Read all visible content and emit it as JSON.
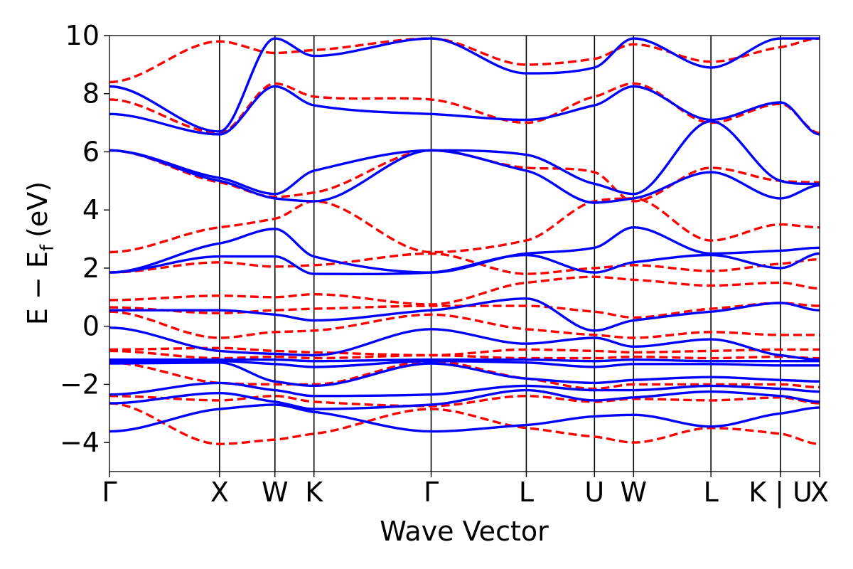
{
  "chart_data": {
    "type": "line",
    "title": "",
    "xlabel": "Wave Vector",
    "ylabel": "E − E",
    "ylabel_subscript": "f",
    "ylabel_unit": "(eV)",
    "ylim": [
      -5,
      10
    ],
    "yticks": [
      -4,
      -2,
      0,
      2,
      4,
      6,
      8,
      10
    ],
    "ytick_labels": [
      "−4",
      "−2",
      "0",
      "2",
      "4",
      "6",
      "8",
      "10"
    ],
    "xlim": [
      0,
      1
    ],
    "kpoints": [
      {
        "label": "Γ",
        "x": 0.0
      },
      {
        "label": "X",
        "x": 0.155
      },
      {
        "label": "W",
        "x": 0.233
      },
      {
        "label": "K",
        "x": 0.288
      },
      {
        "label": "Γ",
        "x": 0.453
      },
      {
        "label": "L",
        "x": 0.587
      },
      {
        "label": "U",
        "x": 0.683
      },
      {
        "label": "W",
        "x": 0.738
      },
      {
        "label": "L",
        "x": 0.847
      },
      {
        "label": "K | U",
        "x": 0.945
      },
      {
        "label": "X",
        "x": 1.0
      }
    ],
    "grid": false,
    "series": [
      {
        "color": "#0000ff",
        "style": "solid",
        "bands": [
          [
            -3.62,
            -2.85,
            -2.7,
            -2.95,
            -3.62,
            -3.4,
            -3.1,
            -3.05,
            -3.45,
            -3.0,
            -2.8
          ],
          [
            -2.65,
            -2.3,
            -2.6,
            -2.85,
            -2.7,
            -2.2,
            -2.55,
            -2.45,
            -2.25,
            -2.4,
            -2.6
          ],
          [
            -2.35,
            -1.95,
            -2.2,
            -2.4,
            -2.35,
            -2.05,
            -2.2,
            -2.2,
            -2.05,
            -2.15,
            -2.25
          ],
          [
            -1.28,
            -1.25,
            -1.9,
            -2.05,
            -1.28,
            -1.8,
            -1.95,
            -1.85,
            -1.75,
            -1.85,
            -1.9
          ],
          [
            -1.2,
            -1.2,
            -1.3,
            -1.4,
            -1.2,
            -1.25,
            -1.4,
            -1.3,
            -1.3,
            -1.35,
            -1.35
          ],
          [
            -1.15,
            -1.15,
            -1.15,
            -1.2,
            -1.15,
            -1.15,
            -1.2,
            -1.15,
            -1.2,
            -1.2,
            -1.2
          ],
          [
            -0.05,
            -0.85,
            -0.95,
            -1.0,
            -0.1,
            -0.6,
            -0.4,
            -0.7,
            -0.45,
            -1.0,
            -1.15
          ],
          [
            0.55,
            0.55,
            0.4,
            0.2,
            0.55,
            0.95,
            -0.15,
            0.2,
            0.5,
            0.8,
            0.55
          ],
          [
            1.85,
            2.4,
            2.4,
            1.8,
            1.85,
            2.45,
            1.85,
            2.2,
            2.45,
            2.0,
            2.5
          ],
          [
            1.85,
            2.85,
            3.35,
            2.4,
            1.85,
            2.5,
            2.7,
            3.4,
            2.5,
            2.6,
            2.7
          ],
          [
            6.05,
            5.0,
            4.4,
            4.3,
            6.05,
            5.35,
            4.25,
            4.4,
            5.3,
            4.4,
            4.85
          ],
          [
            6.05,
            5.1,
            4.55,
            5.35,
            6.05,
            5.9,
            4.9,
            4.55,
            7.05,
            5.0,
            4.9
          ],
          [
            7.3,
            6.6,
            8.25,
            7.6,
            7.3,
            7.1,
            7.6,
            8.25,
            7.1,
            7.7,
            6.6
          ],
          [
            8.25,
            6.7,
            9.9,
            9.3,
            9.9,
            8.7,
            8.9,
            9.9,
            8.9,
            9.9,
            9.9
          ]
        ]
      },
      {
        "color": "#ff0000",
        "style": "dashed",
        "bands": [
          [
            -2.65,
            -4.05,
            -3.9,
            -3.7,
            -2.85,
            -3.5,
            -3.8,
            -4.0,
            -3.5,
            -3.7,
            -4.05
          ],
          [
            -2.4,
            -2.55,
            -2.4,
            -2.6,
            -2.75,
            -2.4,
            -2.6,
            -2.5,
            -2.55,
            -2.45,
            -2.65
          ],
          [
            -1.25,
            -1.95,
            -2.0,
            -2.0,
            -1.2,
            -1.8,
            -2.15,
            -2.0,
            -2.0,
            -2.0,
            -2.1
          ],
          [
            -0.85,
            -1.1,
            -1.05,
            -1.1,
            -1.0,
            -1.1,
            -1.1,
            -1.05,
            -1.1,
            -1.05,
            -1.1
          ],
          [
            -0.8,
            -0.75,
            -0.85,
            -0.9,
            -1.0,
            -0.8,
            -0.85,
            -0.9,
            -0.85,
            -0.8,
            -0.8
          ],
          [
            0.5,
            -0.4,
            -0.2,
            -0.15,
            0.4,
            -0.1,
            -0.3,
            -0.4,
            -0.2,
            -0.3,
            -0.3
          ],
          [
            0.65,
            0.45,
            0.55,
            0.6,
            0.7,
            0.7,
            0.5,
            0.3,
            0.6,
            0.8,
            0.7
          ],
          [
            0.9,
            1.05,
            1.0,
            1.1,
            0.75,
            1.5,
            1.7,
            1.6,
            1.4,
            1.5,
            1.3
          ],
          [
            1.85,
            2.2,
            2.05,
            2.1,
            2.5,
            1.8,
            2.0,
            2.1,
            1.9,
            2.15,
            2.3
          ],
          [
            2.55,
            3.4,
            3.7,
            4.3,
            2.55,
            2.95,
            4.3,
            4.4,
            2.95,
            3.5,
            3.4
          ],
          [
            6.05,
            4.95,
            4.45,
            4.6,
            6.05,
            5.45,
            5.3,
            4.3,
            5.45,
            5.0,
            4.95
          ],
          [
            7.8,
            6.65,
            8.35,
            7.9,
            7.8,
            7.0,
            7.9,
            8.35,
            7.0,
            7.65,
            6.65
          ],
          [
            8.4,
            9.8,
            9.4,
            9.5,
            9.9,
            9.0,
            9.2,
            9.7,
            9.1,
            9.6,
            9.9
          ]
        ]
      }
    ]
  }
}
